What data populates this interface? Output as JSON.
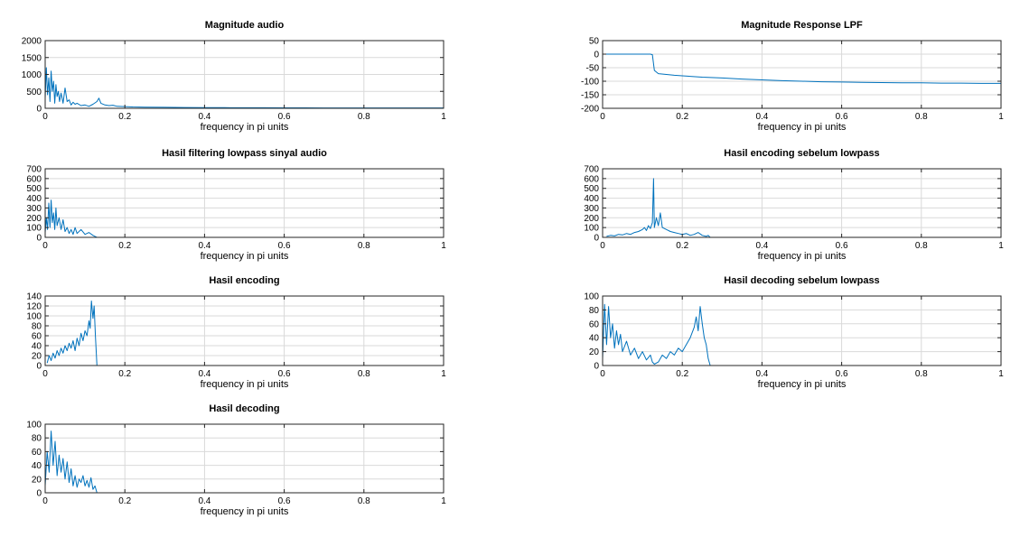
{
  "chart_data": [
    {
      "type": "line",
      "title": "Magnitude audio",
      "xlabel": "frequency in pi units",
      "ylabel": "",
      "xlim": [
        0,
        1
      ],
      "ylim": [
        0,
        2000
      ],
      "xticks": [
        0,
        0.2,
        0.4,
        0.6,
        0.8,
        1
      ],
      "xtick_labels": [
        "0",
        "0.2",
        "0.4",
        "0.6",
        "0.8",
        "1"
      ],
      "yticks": [
        0,
        500,
        1000,
        1500,
        2000
      ],
      "ytick_labels": [
        "0",
        "500",
        "1000",
        "1500",
        "2000"
      ],
      "grid": true,
      "series": [
        {
          "x": [
            0,
            0.003,
            0.006,
            0.009,
            0.012,
            0.015,
            0.018,
            0.021,
            0.024,
            0.027,
            0.03,
            0.033,
            0.036,
            0.04,
            0.045,
            0.05,
            0.055,
            0.06,
            0.065,
            0.07,
            0.075,
            0.08,
            0.09,
            0.1,
            0.11,
            0.12,
            0.13,
            0.135,
            0.14,
            0.15,
            0.16,
            0.17,
            0.18,
            0.2,
            0.22,
            0.25,
            0.3,
            0.35,
            0.4,
            0.45,
            0.5,
            0.55,
            0.6,
            0.65,
            0.7,
            0.75,
            0.8,
            0.85,
            0.9,
            0.95,
            1.0
          ],
          "y": [
            300,
            1200,
            400,
            900,
            200,
            1100,
            500,
            800,
            150,
            700,
            350,
            500,
            200,
            450,
            150,
            600,
            200,
            250,
            100,
            180,
            120,
            150,
            80,
            100,
            60,
            120,
            200,
            300,
            150,
            100,
            80,
            90,
            60,
            50,
            40,
            35,
            30,
            25,
            20,
            18,
            15,
            15,
            12,
            12,
            10,
            10,
            10,
            10,
            10,
            10,
            10
          ]
        }
      ]
    },
    {
      "type": "line",
      "title": "Magnitude Response LPF",
      "xlabel": "frequency in pi units",
      "ylabel": "",
      "xlim": [
        0,
        1
      ],
      "ylim": [
        -200,
        50
      ],
      "xticks": [
        0,
        0.2,
        0.4,
        0.6,
        0.8,
        1
      ],
      "xtick_labels": [
        "0",
        "0.2",
        "0.4",
        "0.6",
        "0.8",
        "1"
      ],
      "yticks": [
        -200,
        -150,
        -100,
        -50,
        0,
        50
      ],
      "ytick_labels": [
        "-200",
        "-150",
        "-100",
        "-50",
        "0",
        "50"
      ],
      "grid": true,
      "series": [
        {
          "x": [
            0,
            0.05,
            0.1,
            0.12,
            0.125,
            0.13,
            0.14,
            0.16,
            0.18,
            0.2,
            0.25,
            0.3,
            0.35,
            0.4,
            0.45,
            0.5,
            0.55,
            0.6,
            0.65,
            0.7,
            0.75,
            0.8,
            0.85,
            0.9,
            0.95,
            1.0
          ],
          "y": [
            0,
            0,
            0,
            0,
            -2,
            -60,
            -72,
            -75,
            -78,
            -80,
            -85,
            -88,
            -92,
            -95,
            -98,
            -100,
            -102,
            -103,
            -104,
            -105,
            -106,
            -106,
            -107,
            -107,
            -108,
            -108
          ]
        }
      ]
    },
    {
      "type": "line",
      "title": "Hasil filtering lowpass sinyal audio",
      "xlabel": "frequency in pi units",
      "ylabel": "",
      "xlim": [
        0,
        1
      ],
      "ylim": [
        0,
        700
      ],
      "xticks": [
        0,
        0.2,
        0.4,
        0.6,
        0.8,
        1
      ],
      "xtick_labels": [
        "0",
        "0.2",
        "0.4",
        "0.6",
        "0.8",
        "1"
      ],
      "yticks": [
        0,
        100,
        200,
        300,
        400,
        500,
        600,
        700
      ],
      "ytick_labels": [
        "0",
        "100",
        "200",
        "300",
        "400",
        "500",
        "600",
        "700"
      ],
      "grid": true,
      "series": [
        {
          "x": [
            0,
            0.003,
            0.006,
            0.009,
            0.012,
            0.015,
            0.018,
            0.021,
            0.024,
            0.027,
            0.03,
            0.035,
            0.04,
            0.045,
            0.05,
            0.055,
            0.06,
            0.065,
            0.07,
            0.075,
            0.08,
            0.09,
            0.1,
            0.11,
            0.12,
            0.125,
            0.13,
            0.2,
            0.4,
            0.6,
            0.8,
            1.0
          ],
          "y": [
            50,
            200,
            80,
            350,
            100,
            380,
            150,
            250,
            80,
            300,
            120,
            200,
            80,
            180,
            60,
            100,
            40,
            80,
            30,
            100,
            40,
            80,
            30,
            50,
            20,
            10,
            0,
            0,
            0,
            0,
            0,
            0
          ]
        }
      ]
    },
    {
      "type": "line",
      "title": "Hasil encoding sebelum lowpass",
      "xlabel": "frequency in pi units",
      "ylabel": "",
      "xlim": [
        0,
        1
      ],
      "ylim": [
        0,
        700
      ],
      "xticks": [
        0,
        0.2,
        0.4,
        0.6,
        0.8,
        1
      ],
      "xtick_labels": [
        "0",
        "0.2",
        "0.4",
        "0.6",
        "0.8",
        "1"
      ],
      "yticks": [
        0,
        100,
        200,
        300,
        400,
        500,
        600,
        700
      ],
      "ytick_labels": [
        "0",
        "100",
        "200",
        "300",
        "400",
        "500",
        "600",
        "700"
      ],
      "grid": true,
      "series": [
        {
          "x": [
            0.01,
            0.02,
            0.03,
            0.04,
            0.05,
            0.06,
            0.07,
            0.08,
            0.09,
            0.1,
            0.105,
            0.11,
            0.115,
            0.12,
            0.125,
            0.128,
            0.13,
            0.135,
            0.14,
            0.145,
            0.15,
            0.16,
            0.17,
            0.18,
            0.19,
            0.2,
            0.21,
            0.22,
            0.23,
            0.24,
            0.25,
            0.26,
            0.265,
            0.27,
            0.4,
            0.6,
            0.8,
            1.0
          ],
          "y": [
            10,
            20,
            15,
            30,
            25,
            40,
            30,
            50,
            60,
            80,
            100,
            70,
            120,
            90,
            150,
            600,
            100,
            200,
            120,
            250,
            100,
            80,
            60,
            50,
            40,
            30,
            40,
            20,
            30,
            50,
            20,
            10,
            20,
            0,
            0,
            0,
            0,
            0
          ]
        }
      ]
    },
    {
      "type": "line",
      "title": "Hasil encoding",
      "xlabel": "frequency in pi units",
      "ylabel": "",
      "xlim": [
        0,
        1
      ],
      "ylim": [
        0,
        140
      ],
      "xticks": [
        0,
        0.2,
        0.4,
        0.6,
        0.8,
        1
      ],
      "xtick_labels": [
        "0",
        "0.2",
        "0.4",
        "0.6",
        "0.8",
        "1"
      ],
      "yticks": [
        0,
        20,
        40,
        60,
        80,
        100,
        120,
        140
      ],
      "ytick_labels": [
        "0",
        "20",
        "40",
        "60",
        "80",
        "100",
        "120",
        "140"
      ],
      "grid": true,
      "series": [
        {
          "x": [
            0.005,
            0.01,
            0.015,
            0.02,
            0.025,
            0.03,
            0.035,
            0.04,
            0.045,
            0.05,
            0.055,
            0.06,
            0.065,
            0.07,
            0.075,
            0.08,
            0.085,
            0.09,
            0.095,
            0.1,
            0.105,
            0.11,
            0.113,
            0.116,
            0.12,
            0.123,
            0.126,
            0.13,
            0.2,
            0.4,
            0.6,
            0.8,
            1.0
          ],
          "y": [
            5,
            20,
            10,
            25,
            15,
            30,
            20,
            35,
            25,
            40,
            30,
            45,
            35,
            50,
            30,
            55,
            40,
            65,
            50,
            70,
            60,
            90,
            75,
            130,
            95,
            120,
            60,
            0,
            0,
            0,
            0,
            0,
            0
          ]
        }
      ]
    },
    {
      "type": "line",
      "title": "Hasil decoding sebelum lowpass",
      "xlabel": "frequency in pi units",
      "ylabel": "",
      "xlim": [
        0,
        1
      ],
      "ylim": [
        0,
        100
      ],
      "xticks": [
        0,
        0.2,
        0.4,
        0.6,
        0.8,
        1
      ],
      "xtick_labels": [
        "0",
        "0.2",
        "0.4",
        "0.6",
        "0.8",
        "1"
      ],
      "yticks": [
        0,
        20,
        40,
        60,
        80,
        100
      ],
      "ytick_labels": [
        "0",
        "20",
        "40",
        "60",
        "80",
        "100"
      ],
      "grid": true,
      "series": [
        {
          "x": [
            0,
            0.005,
            0.01,
            0.015,
            0.02,
            0.025,
            0.03,
            0.035,
            0.04,
            0.045,
            0.05,
            0.06,
            0.07,
            0.08,
            0.09,
            0.1,
            0.11,
            0.12,
            0.125,
            0.13,
            0.14,
            0.15,
            0.16,
            0.17,
            0.18,
            0.19,
            0.2,
            0.21,
            0.22,
            0.23,
            0.235,
            0.24,
            0.245,
            0.25,
            0.255,
            0.26,
            0.265,
            0.27,
            0.4,
            0.6,
            0.8,
            1.0
          ],
          "y": [
            10,
            88,
            30,
            85,
            40,
            60,
            25,
            50,
            30,
            45,
            20,
            35,
            15,
            25,
            10,
            20,
            8,
            15,
            5,
            2,
            5,
            15,
            10,
            20,
            15,
            25,
            20,
            30,
            40,
            55,
            70,
            50,
            85,
            60,
            40,
            30,
            10,
            0,
            0,
            0,
            0,
            0
          ]
        }
      ]
    },
    {
      "type": "line",
      "title": "Hasil decoding",
      "xlabel": "frequency in pi units",
      "ylabel": "",
      "xlim": [
        0,
        1
      ],
      "ylim": [
        0,
        100
      ],
      "xticks": [
        0,
        0.2,
        0.4,
        0.6,
        0.8,
        1
      ],
      "xtick_labels": [
        "0",
        "0.2",
        "0.4",
        "0.6",
        "0.8",
        "1"
      ],
      "yticks": [
        0,
        20,
        40,
        60,
        80,
        100
      ],
      "ytick_labels": [
        "0",
        "20",
        "40",
        "60",
        "80",
        "100"
      ],
      "grid": true,
      "series": [
        {
          "x": [
            0,
            0.005,
            0.01,
            0.015,
            0.02,
            0.025,
            0.03,
            0.035,
            0.04,
            0.045,
            0.05,
            0.055,
            0.06,
            0.065,
            0.07,
            0.075,
            0.08,
            0.085,
            0.09,
            0.095,
            0.1,
            0.105,
            0.11,
            0.115,
            0.12,
            0.125,
            0.13,
            0.2,
            0.4,
            0.6,
            0.8,
            1.0
          ],
          "y": [
            10,
            60,
            30,
            90,
            40,
            75,
            25,
            55,
            30,
            50,
            20,
            45,
            15,
            35,
            10,
            25,
            8,
            20,
            15,
            25,
            10,
            18,
            8,
            22,
            5,
            10,
            0,
            0,
            0,
            0,
            0,
            0
          ]
        }
      ]
    }
  ]
}
